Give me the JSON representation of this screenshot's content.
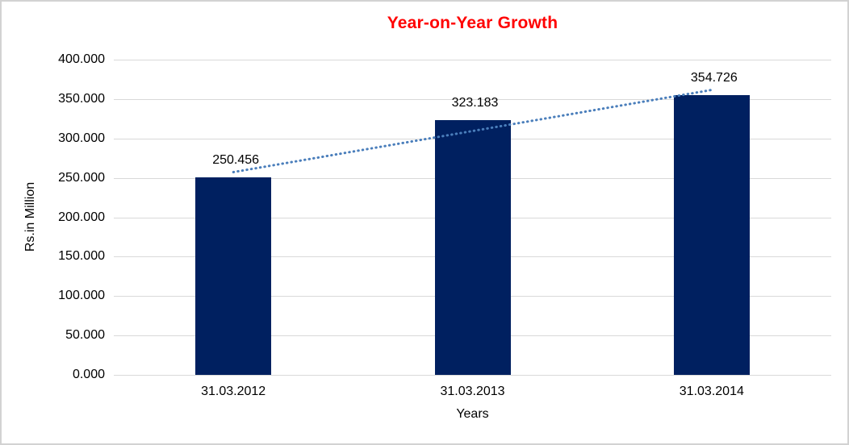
{
  "chart_data": {
    "type": "bar",
    "title": "Year-on-Year Growth",
    "title_color": "#FF0000",
    "categories": [
      "31.03.2012",
      "31.03.2013",
      "31.03.2014"
    ],
    "values": [
      250.456,
      323.183,
      354.726
    ],
    "data_labels": [
      "250.456",
      "323.183",
      "354.726"
    ],
    "xlabel": "Years",
    "ylabel": "Rs.in Million",
    "ylim": [
      0,
      400
    ],
    "y_ticks": [
      "0.000",
      "50.000",
      "100.000",
      "150.000",
      "200.000",
      "250.000",
      "300.000",
      "350.000",
      "400.000"
    ],
    "bar_color": "#002060",
    "grid": true,
    "grid_color": "#D9D9D9",
    "legend": false,
    "trendline": {
      "type": "linear",
      "style": "dotted",
      "color": "#4A7EBB"
    }
  }
}
